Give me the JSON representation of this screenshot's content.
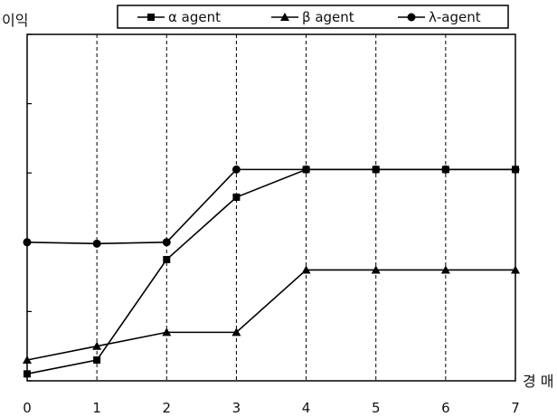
{
  "chart_data": {
    "type": "line",
    "ylabel": "이익",
    "xlabel": "경 매",
    "x": [
      0,
      1,
      2,
      3,
      4,
      5,
      6,
      7
    ],
    "x_tick_labels": [
      "0",
      "1",
      "2",
      "3",
      "4",
      "5",
      "6",
      "7"
    ],
    "xlim": [
      0,
      7
    ],
    "ylim": [
      0,
      5
    ],
    "grid": "vertical dashed",
    "legend_position": "top",
    "y_tick_labels_shown": false,
    "series": [
      {
        "name": "α agent",
        "marker": "square",
        "values": [
          0.1,
          0.3,
          1.75,
          2.65,
          3.05,
          3.05,
          3.05,
          3.05
        ]
      },
      {
        "name": "β agent",
        "marker": "triangle",
        "values": [
          0.3,
          0.5,
          0.7,
          0.7,
          1.6,
          1.6,
          1.6,
          1.6
        ]
      },
      {
        "name": "λ-agent",
        "marker": "circle",
        "values": [
          2.0,
          1.98,
          2.0,
          3.05,
          3.05,
          3.05,
          3.05,
          3.05
        ]
      }
    ],
    "colors": {
      "line": "#000000",
      "grid": "#000000",
      "background": "#ffffff"
    }
  }
}
